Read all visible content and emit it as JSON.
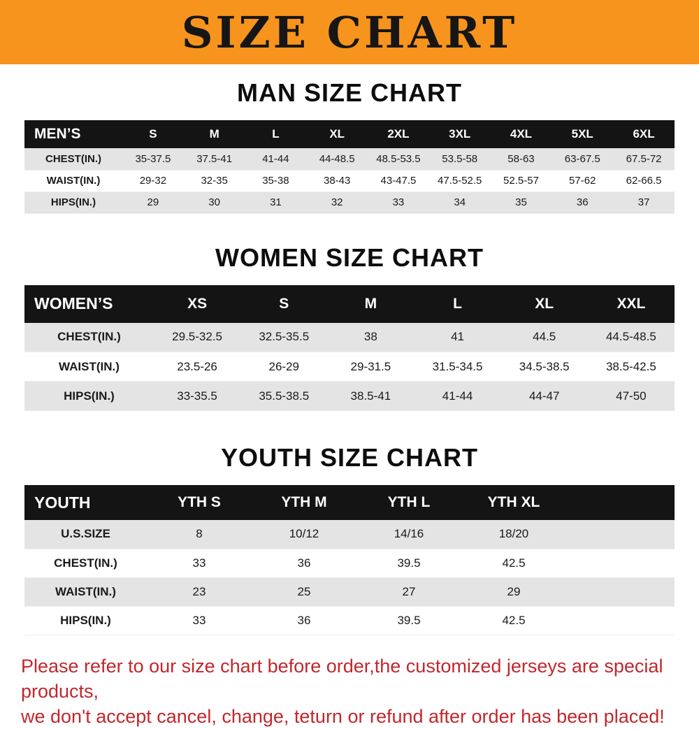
{
  "banner": {
    "title": "SIZE CHART"
  },
  "colors": {
    "banner_bg": "#F7941D",
    "header_bg": "#141414",
    "stripe": "#E4E4E4",
    "note_red": "#C1272D"
  },
  "men": {
    "heading": "MAN SIZE CHART",
    "header": [
      "MEN’S",
      "S",
      "M",
      "L",
      "XL",
      "2XL",
      "3XL",
      "4XL",
      "5XL",
      "6XL"
    ],
    "rows": [
      [
        "CHEST(IN.)",
        "35-37.5",
        "37.5-41",
        "41-44",
        "44-48.5",
        "48.5-53.5",
        "53.5-58",
        "58-63",
        "63-67.5",
        "67.5-72"
      ],
      [
        "WAIST(IN.)",
        "29-32",
        "32-35",
        "35-38",
        "38-43",
        "43-47.5",
        "47.5-52.5",
        "52.5-57",
        "57-62",
        "62-66.5"
      ],
      [
        "HIPS(IN.)",
        "29",
        "30",
        "31",
        "32",
        "33",
        "34",
        "35",
        "36",
        "37"
      ]
    ]
  },
  "women": {
    "heading": "WOMEN SIZE CHART",
    "header": [
      "WOMEN’S",
      "XS",
      "S",
      "M",
      "L",
      "XL",
      "XXL"
    ],
    "rows": [
      [
        "CHEST(IN.)",
        "29.5-32.5",
        "32.5-35.5",
        "38",
        "41",
        "44.5",
        "44.5-48.5"
      ],
      [
        "WAIST(IN.)",
        "23.5-26",
        "26-29",
        "29-31.5",
        "31.5-34.5",
        "34.5-38.5",
        "38.5-42.5"
      ],
      [
        "HIPS(IN.)",
        "33-35.5",
        "35.5-38.5",
        "38.5-41",
        "41-44",
        "44-47",
        "47-50"
      ]
    ]
  },
  "youth": {
    "heading": "YOUTH SIZE CHART",
    "header": [
      "YOUTH",
      "YTH S",
      "YTH M",
      "YTH L",
      "YTH XL"
    ],
    "rows": [
      [
        "U.S.SIZE",
        "8",
        "10/12",
        "14/16",
        "18/20"
      ],
      [
        "CHEST(IN.)",
        "33",
        "36",
        "39.5",
        "42.5"
      ],
      [
        "WAIST(IN.)",
        "23",
        "25",
        "27",
        "29"
      ],
      [
        "HIPS(IN.)",
        "33",
        "36",
        "39.5",
        "42.5"
      ]
    ]
  },
  "notes": {
    "line1": "Please refer to our size chart before order,the customized jerseys are special products,",
    "line2": "we don't accept cancel, change, teturn or refund after order has been placed!"
  }
}
